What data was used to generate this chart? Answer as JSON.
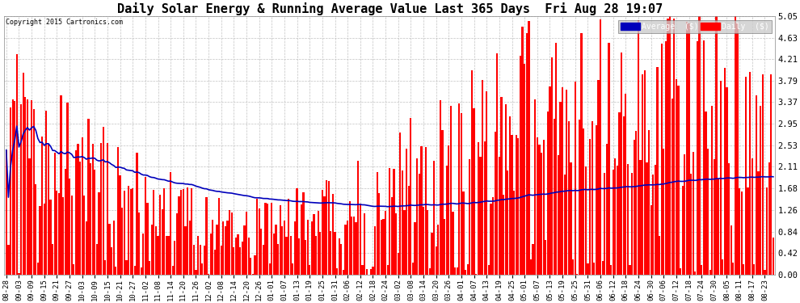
{
  "title": "Daily Solar Energy & Running Average Value Last 365 Days  Fri Aug 28 19:07",
  "copyright": "Copyright 2015 Cartronics.com",
  "yticks": [
    0.0,
    0.42,
    0.84,
    1.26,
    1.68,
    2.11,
    2.53,
    2.95,
    3.37,
    3.79,
    4.21,
    4.63,
    5.05
  ],
  "bar_color": "#ff0000",
  "avg_color": "#0000bb",
  "background_color": "#ffffff",
  "grid_color": "#bbbbbb",
  "legend_avg_bg": "#0000bb",
  "legend_daily_bg": "#ff0000",
  "legend_avg_text": "Average  ($)",
  "legend_daily_text": "Daily  ($)",
  "title_fontsize": 11,
  "tick_fontsize": 7.5,
  "x_labels": [
    "08-28",
    "09-03",
    "09-09",
    "09-15",
    "09-21",
    "09-27",
    "10-03",
    "10-09",
    "10-15",
    "10-21",
    "10-27",
    "11-02",
    "11-08",
    "11-14",
    "11-20",
    "11-26",
    "12-02",
    "12-08",
    "12-14",
    "12-20",
    "12-26",
    "01-01",
    "01-07",
    "01-13",
    "01-19",
    "01-25",
    "01-31",
    "02-06",
    "02-12",
    "02-18",
    "02-24",
    "03-02",
    "03-08",
    "03-14",
    "03-20",
    "03-26",
    "04-01",
    "04-07",
    "04-13",
    "04-19",
    "04-25",
    "05-01",
    "05-07",
    "05-13",
    "05-19",
    "05-25",
    "05-31",
    "06-06",
    "06-12",
    "06-18",
    "06-24",
    "06-30",
    "07-06",
    "07-12",
    "07-18",
    "07-24",
    "07-30",
    "08-05",
    "08-11",
    "08-17",
    "08-23"
  ],
  "num_bars": 365,
  "ylim": [
    0.0,
    5.05
  ],
  "seed": 12345
}
